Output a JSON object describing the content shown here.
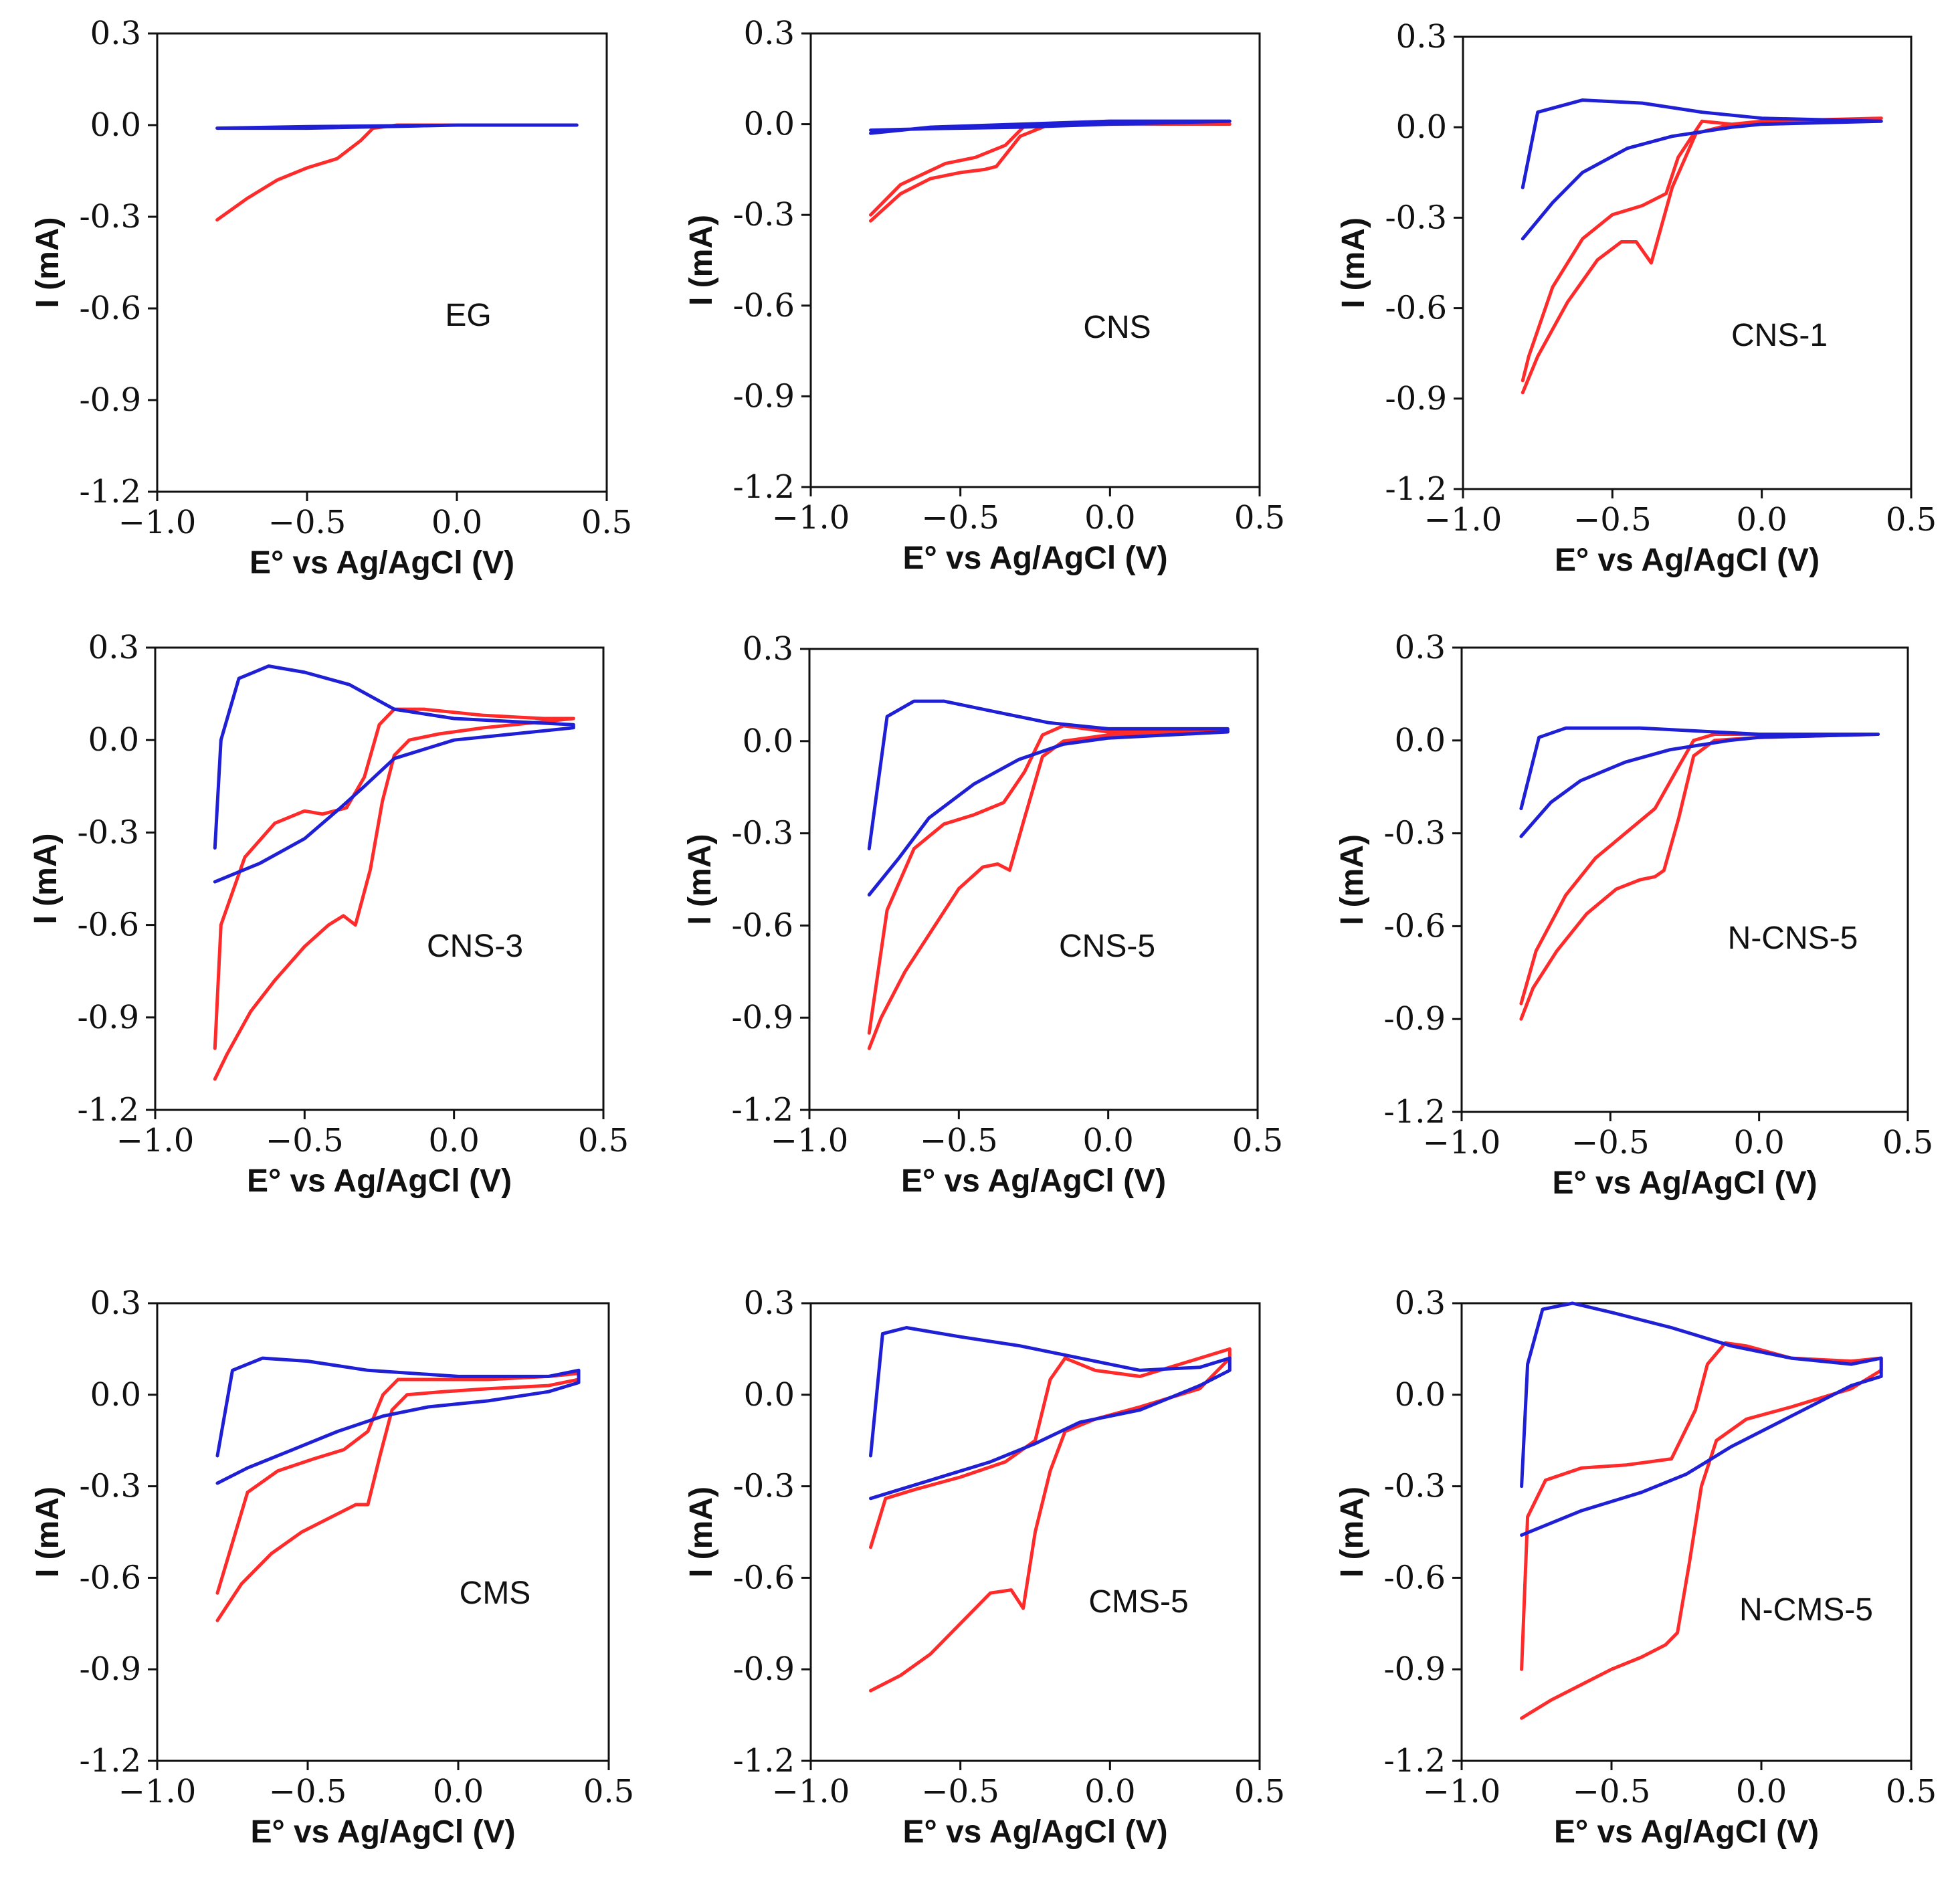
{
  "figure": {
    "series_colors": {
      "cathodic": "#ff2a2a",
      "anodic": "#1f1fd6"
    },
    "axis_color": "#111111"
  },
  "chart_data": [
    {
      "type": "line",
      "title": "EG",
      "xlabel": "E° vs Ag/AgCl (V)",
      "ylabel": "I (mA)",
      "xlim": [
        -1.0,
        0.5
      ],
      "ylim": [
        -1.2,
        0.3
      ],
      "xticks": [
        "−1.0",
        "−0.5",
        "0.0",
        "0.5"
      ],
      "yticks": [
        "0.3",
        "0.0",
        "-0.3",
        "-0.6",
        "-0.9",
        "-1.2"
      ],
      "series": [
        {
          "name": "red",
          "color": "#ff2a2a",
          "x": [
            -0.8,
            -0.7,
            -0.6,
            -0.5,
            -0.4,
            -0.32,
            -0.28,
            -0.2,
            0.0,
            0.4
          ],
          "y": [
            -0.31,
            -0.24,
            -0.18,
            -0.14,
            -0.11,
            -0.05,
            -0.01,
            0.0,
            0.0,
            0.0
          ]
        },
        {
          "name": "blue",
          "color": "#1f1fd6",
          "x": [
            -0.8,
            -0.5,
            0.0,
            0.4,
            0.4,
            0.0,
            -0.5,
            -0.8
          ],
          "y": [
            -0.01,
            -0.01,
            0.0,
            0.0,
            0.0,
            0.0,
            -0.005,
            -0.01
          ]
        }
      ]
    },
    {
      "type": "line",
      "title": "CNS",
      "xlabel": "E° vs Ag/AgCl (V)",
      "ylabel": "I (mA)",
      "xlim": [
        -1.0,
        0.5
      ],
      "ylim": [
        -1.2,
        0.3
      ],
      "xticks": [
        "−1.0",
        "−0.5",
        "0.0",
        "0.5"
      ],
      "yticks": [
        "0.3",
        "0.0",
        "-0.3",
        "-0.6",
        "-0.9",
        "-1.2"
      ],
      "series": [
        {
          "name": "red",
          "color": "#ff2a2a",
          "x": [
            -0.8,
            -0.7,
            -0.6,
            -0.5,
            -0.42,
            -0.38,
            -0.3,
            -0.2,
            0.0,
            0.4,
            0.4,
            0.0,
            -0.28,
            -0.35,
            -0.45,
            -0.55,
            -0.7,
            -0.8
          ],
          "y": [
            -0.32,
            -0.23,
            -0.18,
            -0.16,
            -0.15,
            -0.14,
            -0.04,
            0.0,
            0.0,
            0.0,
            0.0,
            0.0,
            0.0,
            -0.07,
            -0.11,
            -0.13,
            -0.2,
            -0.3
          ]
        },
        {
          "name": "blue",
          "color": "#1f1fd6",
          "x": [
            -0.8,
            -0.6,
            -0.3,
            0.0,
            0.4,
            0.4,
            0.0,
            -0.3,
            -0.6,
            -0.8
          ],
          "y": [
            -0.03,
            -0.01,
            0.0,
            0.01,
            0.01,
            0.01,
            0.0,
            -0.01,
            -0.015,
            -0.02
          ]
        }
      ]
    },
    {
      "type": "line",
      "title": "CNS-1",
      "xlabel": "E° vs Ag/AgCl (V)",
      "ylabel": "I (mA)",
      "xlim": [
        -1.0,
        0.5
      ],
      "ylim": [
        -1.2,
        0.3
      ],
      "xticks": [
        "−1.0",
        "−0.5",
        "0.0",
        "0.5"
      ],
      "yticks": [
        "0.3",
        "0.0",
        "-0.3",
        "-0.6",
        "-0.9",
        "-1.2"
      ],
      "series": [
        {
          "name": "red",
          "color": "#ff2a2a",
          "x": [
            -0.8,
            -0.75,
            -0.65,
            -0.55,
            -0.47,
            -0.42,
            -0.37,
            -0.3,
            -0.22,
            -0.1,
            0.0,
            0.4,
            0.4,
            0.0,
            -0.1,
            -0.2,
            -0.28,
            -0.32,
            -0.4,
            -0.5,
            -0.6,
            -0.7,
            -0.78,
            -0.8
          ],
          "y": [
            -0.88,
            -0.76,
            -0.58,
            -0.44,
            -0.38,
            -0.38,
            -0.45,
            -0.2,
            -0.02,
            0.01,
            0.02,
            0.03,
            0.03,
            0.02,
            0.01,
            0.02,
            -0.1,
            -0.22,
            -0.26,
            -0.29,
            -0.37,
            -0.53,
            -0.76,
            -0.84
          ]
        },
        {
          "name": "blue",
          "color": "#1f1fd6",
          "x": [
            -0.8,
            -0.7,
            -0.6,
            -0.45,
            -0.3,
            -0.1,
            0.0,
            0.4,
            0.4,
            0.0,
            -0.2,
            -0.4,
            -0.6,
            -0.75,
            -0.8
          ],
          "y": [
            -0.37,
            -0.25,
            -0.15,
            -0.07,
            -0.03,
            0.0,
            0.01,
            0.02,
            0.02,
            0.03,
            0.05,
            0.08,
            0.09,
            0.05,
            -0.2
          ]
        }
      ]
    },
    {
      "type": "line",
      "title": "CNS-3",
      "xlabel": "E° vs Ag/AgCl (V)",
      "ylabel": "I (mA)",
      "xlim": [
        -1.0,
        0.5
      ],
      "ylim": [
        -1.2,
        0.3
      ],
      "xticks": [
        "−1.0",
        "−0.5",
        "0.0",
        "0.5"
      ],
      "yticks": [
        "0.3",
        "0.0",
        "-0.3",
        "-0.6",
        "-0.9",
        "-1.2"
      ],
      "series": [
        {
          "name": "red",
          "color": "#ff2a2a",
          "x": [
            -0.8,
            -0.76,
            -0.68,
            -0.6,
            -0.5,
            -0.42,
            -0.37,
            -0.33,
            -0.28,
            -0.24,
            -0.2,
            -0.15,
            -0.05,
            0.1,
            0.3,
            0.4,
            0.4,
            0.3,
            0.1,
            -0.1,
            -0.2,
            -0.25,
            -0.3,
            -0.36,
            -0.44,
            -0.5,
            -0.6,
            -0.7,
            -0.78,
            -0.8
          ],
          "y": [
            -1.1,
            -1.02,
            -0.88,
            -0.78,
            -0.67,
            -0.6,
            -0.57,
            -0.6,
            -0.42,
            -0.2,
            -0.05,
            0.0,
            0.02,
            0.04,
            0.06,
            0.07,
            0.07,
            0.07,
            0.08,
            0.1,
            0.1,
            0.05,
            -0.12,
            -0.22,
            -0.24,
            -0.23,
            -0.27,
            -0.38,
            -0.6,
            -1.0
          ]
        },
        {
          "name": "blue",
          "color": "#1f1fd6",
          "x": [
            -0.8,
            -0.65,
            -0.5,
            -0.38,
            -0.3,
            -0.2,
            0.0,
            0.2,
            0.4,
            0.4,
            0.2,
            0.0,
            -0.2,
            -0.35,
            -0.5,
            -0.62,
            -0.72,
            -0.78,
            -0.8
          ],
          "y": [
            -0.46,
            -0.4,
            -0.32,
            -0.22,
            -0.15,
            -0.06,
            0.0,
            0.02,
            0.04,
            0.05,
            0.06,
            0.07,
            0.1,
            0.18,
            0.22,
            0.24,
            0.2,
            0.0,
            -0.35
          ]
        }
      ]
    },
    {
      "type": "line",
      "title": "CNS-5",
      "xlabel": "E° vs Ag/AgCl (V)",
      "ylabel": "I (mA)",
      "xlim": [
        -1.0,
        0.5
      ],
      "ylim": [
        -1.2,
        0.3
      ],
      "xticks": [
        "−1.0",
        "−0.5",
        "0.0",
        "0.5"
      ],
      "yticks": [
        "0.3",
        "0.0",
        "-0.3",
        "-0.6",
        "-0.9",
        "-1.2"
      ],
      "series": [
        {
          "name": "red",
          "color": "#ff2a2a",
          "x": [
            -0.8,
            -0.76,
            -0.68,
            -0.58,
            -0.5,
            -0.42,
            -0.37,
            -0.33,
            -0.28,
            -0.22,
            -0.15,
            0.0,
            0.4,
            0.4,
            0.0,
            -0.15,
            -0.22,
            -0.28,
            -0.35,
            -0.45,
            -0.55,
            -0.65,
            -0.74,
            -0.8
          ],
          "y": [
            -1.0,
            -0.9,
            -0.75,
            -0.6,
            -0.48,
            -0.41,
            -0.4,
            -0.42,
            -0.25,
            -0.05,
            0.0,
            0.02,
            0.03,
            0.03,
            0.03,
            0.05,
            0.02,
            -0.1,
            -0.2,
            -0.24,
            -0.27,
            -0.35,
            -0.55,
            -0.95
          ]
        },
        {
          "name": "blue",
          "color": "#1f1fd6",
          "x": [
            -0.8,
            -0.7,
            -0.6,
            -0.45,
            -0.3,
            -0.15,
            0.0,
            0.4,
            0.4,
            0.0,
            -0.2,
            -0.4,
            -0.55,
            -0.65,
            -0.74,
            -0.8
          ],
          "y": [
            -0.5,
            -0.38,
            -0.25,
            -0.14,
            -0.06,
            -0.01,
            0.01,
            0.03,
            0.04,
            0.04,
            0.06,
            0.1,
            0.13,
            0.13,
            0.08,
            -0.35
          ]
        }
      ]
    },
    {
      "type": "line",
      "title": "N-CNS-5",
      "xlabel": "E° vs Ag/AgCl (V)",
      "ylabel": "I (mA)",
      "xlim": [
        -1.0,
        0.5
      ],
      "ylim": [
        -1.2,
        0.3
      ],
      "xticks": [
        "−1.0",
        "−0.5",
        "0.0",
        "0.5"
      ],
      "yticks": [
        "0.3",
        "0.0",
        "-0.3",
        "-0.6",
        "-0.9",
        "-1.2"
      ],
      "series": [
        {
          "name": "red",
          "color": "#ff2a2a",
          "x": [
            -0.8,
            -0.76,
            -0.68,
            -0.58,
            -0.48,
            -0.4,
            -0.35,
            -0.32,
            -0.27,
            -0.22,
            -0.15,
            0.0,
            0.4,
            0.4,
            0.0,
            -0.15,
            -0.22,
            -0.28,
            -0.35,
            -0.45,
            -0.55,
            -0.65,
            -0.75,
            -0.8
          ],
          "y": [
            -0.9,
            -0.8,
            -0.68,
            -0.56,
            -0.48,
            -0.45,
            -0.44,
            -0.42,
            -0.25,
            -0.05,
            0.0,
            0.01,
            0.02,
            0.02,
            0.02,
            0.02,
            0.0,
            -0.1,
            -0.22,
            -0.3,
            -0.38,
            -0.5,
            -0.68,
            -0.85
          ]
        },
        {
          "name": "blue",
          "color": "#1f1fd6",
          "x": [
            -0.8,
            -0.7,
            -0.6,
            -0.45,
            -0.3,
            -0.1,
            0.0,
            0.4,
            0.4,
            0.0,
            -0.2,
            -0.4,
            -0.55,
            -0.65,
            -0.74,
            -0.8
          ],
          "y": [
            -0.31,
            -0.2,
            -0.13,
            -0.07,
            -0.03,
            0.0,
            0.01,
            0.02,
            0.02,
            0.02,
            0.03,
            0.04,
            0.04,
            0.04,
            0.01,
            -0.22
          ]
        }
      ]
    },
    {
      "type": "line",
      "title": "CMS",
      "xlabel": "E° vs Ag/AgCl (V)",
      "ylabel": "I (mA)",
      "xlim": [
        -1.0,
        0.5
      ],
      "ylim": [
        -1.2,
        0.3
      ],
      "xticks": [
        "−1.0",
        "−0.5",
        "0.0",
        "0.5"
      ],
      "yticks": [
        "0.3",
        "0.0",
        "-0.3",
        "-0.6",
        "-0.9",
        "-1.2"
      ],
      "series": [
        {
          "name": "red",
          "color": "#ff2a2a",
          "x": [
            -0.8,
            -0.72,
            -0.62,
            -0.52,
            -0.42,
            -0.34,
            -0.3,
            -0.26,
            -0.22,
            -0.17,
            -0.05,
            0.1,
            0.3,
            0.4,
            0.4,
            0.3,
            0.1,
            -0.1,
            -0.2,
            -0.25,
            -0.3,
            -0.38,
            -0.48,
            -0.6,
            -0.7,
            -0.8
          ],
          "y": [
            -0.74,
            -0.62,
            -0.52,
            -0.45,
            -0.4,
            -0.36,
            -0.36,
            -0.2,
            -0.05,
            0.0,
            0.01,
            0.02,
            0.03,
            0.05,
            0.07,
            0.06,
            0.05,
            0.05,
            0.05,
            0.0,
            -0.12,
            -0.18,
            -0.21,
            -0.25,
            -0.32,
            -0.65
          ]
        },
        {
          "name": "blue",
          "color": "#1f1fd6",
          "x": [
            -0.8,
            -0.7,
            -0.55,
            -0.4,
            -0.25,
            -0.1,
            0.1,
            0.3,
            0.4,
            0.4,
            0.3,
            0.0,
            -0.3,
            -0.5,
            -0.65,
            -0.75,
            -0.8
          ],
          "y": [
            -0.29,
            -0.24,
            -0.18,
            -0.12,
            -0.07,
            -0.04,
            -0.02,
            0.01,
            0.04,
            0.08,
            0.06,
            0.06,
            0.08,
            0.11,
            0.12,
            0.08,
            -0.2
          ]
        }
      ]
    },
    {
      "type": "line",
      "title": "CMS-5",
      "xlabel": "E° vs Ag/AgCl (V)",
      "ylabel": "I (mA)",
      "xlim": [
        -1.0,
        0.5
      ],
      "ylim": [
        -1.2,
        0.3
      ],
      "xticks": [
        "−1.0",
        "−0.5",
        "0.0",
        "0.5"
      ],
      "yticks": [
        "0.3",
        "0.0",
        "-0.3",
        "-0.6",
        "-0.9",
        "-1.2"
      ],
      "series": [
        {
          "name": "red",
          "color": "#ff2a2a",
          "x": [
            -0.8,
            -0.7,
            -0.6,
            -0.5,
            -0.4,
            -0.33,
            -0.29,
            -0.25,
            -0.2,
            -0.15,
            -0.05,
            0.1,
            0.3,
            0.4,
            0.4,
            0.3,
            0.1,
            -0.05,
            -0.15,
            -0.2,
            -0.25,
            -0.35,
            -0.5,
            -0.65,
            -0.75,
            -0.8
          ],
          "y": [
            -0.97,
            -0.92,
            -0.85,
            -0.75,
            -0.65,
            -0.64,
            -0.7,
            -0.45,
            -0.25,
            -0.12,
            -0.08,
            -0.04,
            0.02,
            0.12,
            0.15,
            0.12,
            0.06,
            0.08,
            0.12,
            0.05,
            -0.15,
            -0.22,
            -0.27,
            -0.31,
            -0.34,
            -0.5
          ]
        },
        {
          "name": "blue",
          "color": "#1f1fd6",
          "x": [
            -0.8,
            -0.6,
            -0.4,
            -0.25,
            -0.1,
            0.1,
            0.3,
            0.4,
            0.4,
            0.3,
            0.1,
            -0.1,
            -0.3,
            -0.5,
            -0.68,
            -0.76,
            -0.8
          ],
          "y": [
            -0.34,
            -0.28,
            -0.22,
            -0.16,
            -0.09,
            -0.05,
            0.03,
            0.08,
            0.12,
            0.09,
            0.08,
            0.12,
            0.16,
            0.19,
            0.22,
            0.2,
            -0.2
          ]
        }
      ]
    },
    {
      "type": "line",
      "title": "N-CMS-5",
      "xlabel": "E° vs Ag/AgCl (V)",
      "ylabel": "I (mA)",
      "xlim": [
        -1.0,
        0.5
      ],
      "ylim": [
        -1.2,
        0.3
      ],
      "xticks": [
        "−1.0",
        "−0.5",
        "0.0",
        "0.5"
      ],
      "yticks": [
        "0.3",
        "0.0",
        "-0.3",
        "-0.6",
        "-0.9",
        "-1.2"
      ],
      "series": [
        {
          "name": "red",
          "color": "#ff2a2a",
          "x": [
            -0.8,
            -0.7,
            -0.6,
            -0.5,
            -0.4,
            -0.32,
            -0.28,
            -0.24,
            -0.2,
            -0.15,
            -0.05,
            0.1,
            0.3,
            0.4,
            0.4,
            0.3,
            0.1,
            -0.05,
            -0.12,
            -0.18,
            -0.22,
            -0.3,
            -0.45,
            -0.6,
            -0.72,
            -0.78,
            -0.8
          ],
          "y": [
            -1.06,
            -1.0,
            -0.95,
            -0.9,
            -0.86,
            -0.82,
            -0.78,
            -0.55,
            -0.3,
            -0.15,
            -0.08,
            -0.04,
            0.02,
            0.08,
            0.12,
            0.11,
            0.12,
            0.16,
            0.17,
            0.1,
            -0.05,
            -0.21,
            -0.23,
            -0.24,
            -0.28,
            -0.4,
            -0.9
          ]
        },
        {
          "name": "blue",
          "color": "#1f1fd6",
          "x": [
            -0.8,
            -0.6,
            -0.4,
            -0.25,
            -0.1,
            0.1,
            0.3,
            0.4,
            0.4,
            0.3,
            0.1,
            -0.1,
            -0.3,
            -0.5,
            -0.63,
            -0.73,
            -0.78,
            -0.8
          ],
          "y": [
            -0.46,
            -0.38,
            -0.32,
            -0.26,
            -0.17,
            -0.07,
            0.03,
            0.06,
            0.12,
            0.1,
            0.12,
            0.16,
            0.22,
            0.27,
            0.3,
            0.28,
            0.1,
            -0.3
          ]
        }
      ]
    }
  ]
}
